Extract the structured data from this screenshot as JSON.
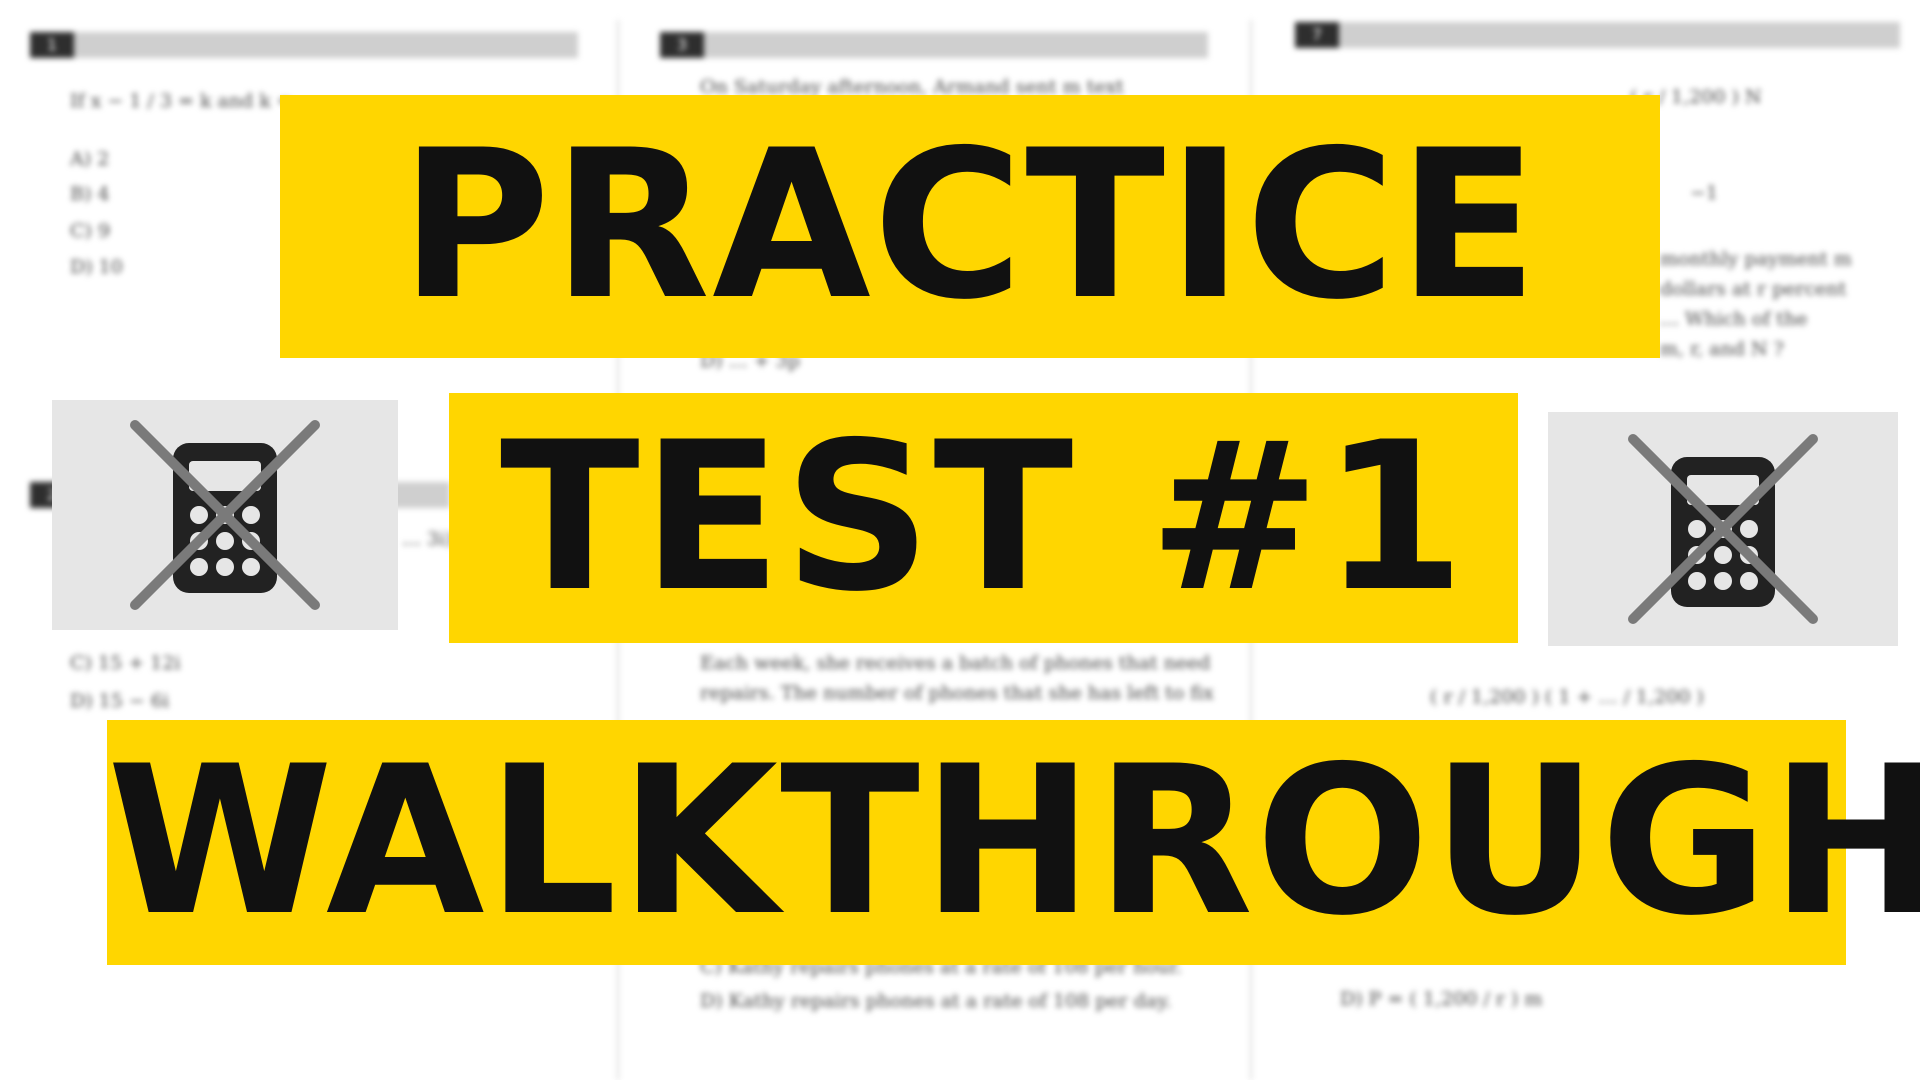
{
  "title": {
    "line1": "PRACTICE",
    "line2": "TEST #1",
    "line3": "WALKTHROUGH"
  },
  "background": {
    "columns": [
      {
        "question_number": "1",
        "lines": [
          "If  x − 1 / 3 = k  and  k = …",
          "A)   2",
          "B)   4",
          "C)   9",
          "D)  10"
        ],
        "second_question_number": "2",
        "second_lines": [
          "… 3i) ·",
          "C)  15 + 12i",
          "D)  15 − 6i"
        ]
      },
      {
        "question_number": "3",
        "lines": [
          "On Saturday afternoon, Armand sent  m  text",
          "D)  …  + 3p"
        ],
        "lower_lines": [
          "Each week, she receives a batch of phones that need",
          "repairs.  The number of phones that she has left to fix",
          "C)  Kathy repairs phones at a rate of 108 per hour.",
          "D)  Kathy repairs phones at a rate of 108 per day."
        ]
      },
      {
        "question_number": "7",
        "lines": [
          "( r / 1,200 ) N",
          "−1",
          "monthly payment  m",
          "dollars at  r  percent",
          "… Which of the",
          "m,  r,  and  N ?"
        ],
        "lower_lines": [
          "( r / 1,200 ) ( 1 + … / 1,200 )",
          "D)  P = ( 1,200 / r ) m"
        ]
      }
    ]
  },
  "icons": {
    "left": "no-calculator-icon",
    "right": "no-calculator-icon"
  },
  "colors": {
    "banner": "#ffd600",
    "text": "#111111",
    "icon_panel": "#e6e6e6",
    "cross": "#7a7a7a"
  }
}
